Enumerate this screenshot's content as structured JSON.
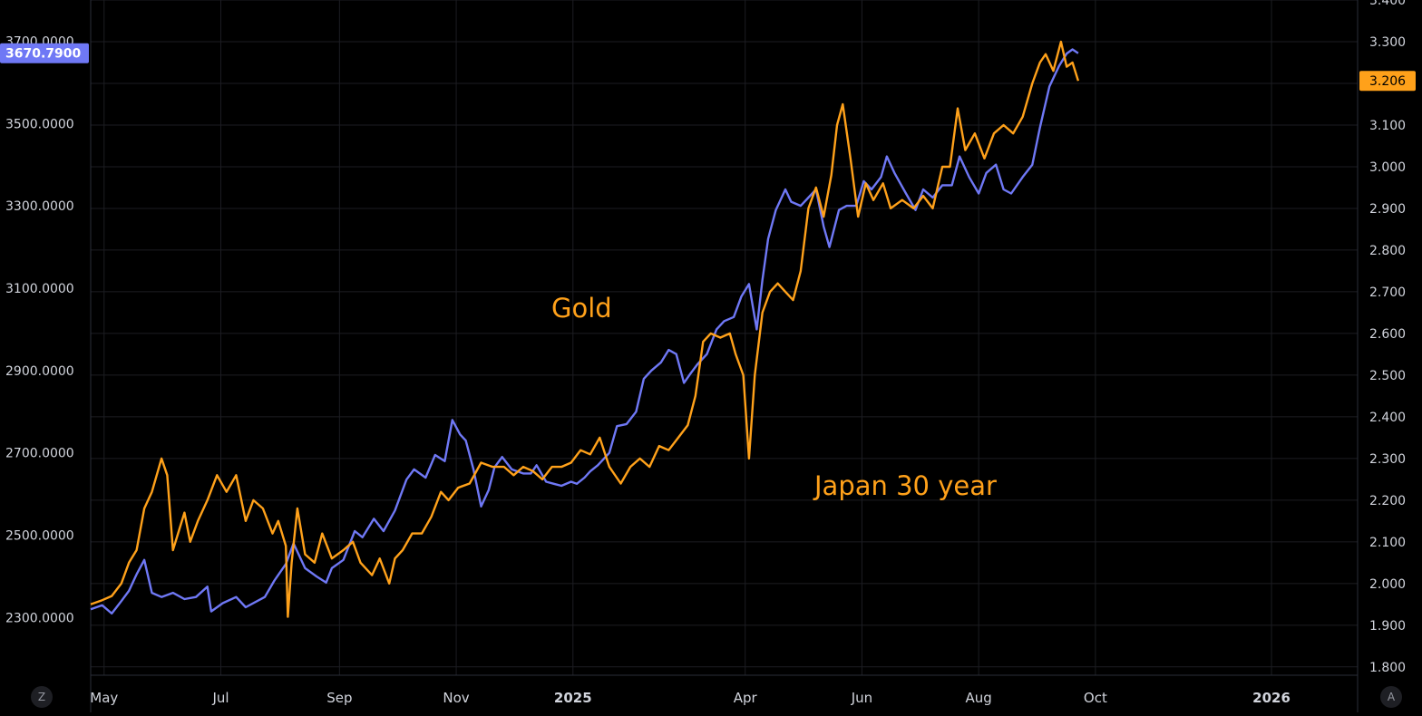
{
  "colors": {
    "background": "#000000",
    "gold": "#6f78f5",
    "japan": "#ffa11a",
    "grid": "#1c1d22",
    "axis_text": "#d1d4dc"
  },
  "controls": {
    "left_button": "Z",
    "right_button": "A"
  },
  "chart_data": {
    "type": "line",
    "x_axis": {
      "ticks": [
        "May",
        "Jul",
        "Sep",
        "Nov",
        "2025",
        "Apr",
        "Jun",
        "Aug",
        "Oct",
        "2026"
      ],
      "tick_dates": [
        "2024-05-01",
        "2024-07-01",
        "2024-09-01",
        "2024-11-01",
        "2025-01-01",
        "2025-04-01",
        "2025-06-01",
        "2025-08-01",
        "2025-10-01",
        "2026-01-01"
      ],
      "range": [
        "2024-04-24",
        "2026-02-15"
      ]
    },
    "y_left": {
      "ticks": [
        "2300.0000",
        "2500.0000",
        "2700.0000",
        "2900.0000",
        "3100.0000",
        "3300.0000",
        "3500.0000",
        "3700.0000"
      ],
      "range": [
        2160,
        3800
      ]
    },
    "y_right": {
      "ticks": [
        "1.800",
        "1.900",
        "2.000",
        "2.100",
        "2.200",
        "2.300",
        "2.400",
        "2.500",
        "2.600",
        "2.700",
        "2.800",
        "2.900",
        "3.000",
        "3.100",
        "3.200",
        "3.300",
        "3.400"
      ],
      "range": [
        1.78,
        3.4
      ]
    },
    "annotations": [
      "Gold",
      "Japan 30 year"
    ],
    "series": [
      {
        "name": "Gold",
        "axis": "left",
        "color": "#6f78f5",
        "last_value": "3670.7900",
        "points": [
          [
            "2024-04-24",
            2320
          ],
          [
            "2024-04-30",
            2330
          ],
          [
            "2024-05-05",
            2310
          ],
          [
            "2024-05-10",
            2340
          ],
          [
            "2024-05-14",
            2365
          ],
          [
            "2024-05-18",
            2405
          ],
          [
            "2024-05-22",
            2440
          ],
          [
            "2024-05-26",
            2360
          ],
          [
            "2024-05-31",
            2350
          ],
          [
            "2024-06-06",
            2360
          ],
          [
            "2024-06-12",
            2345
          ],
          [
            "2024-06-18",
            2350
          ],
          [
            "2024-06-24",
            2375
          ],
          [
            "2024-06-26",
            2315
          ],
          [
            "2024-07-02",
            2335
          ],
          [
            "2024-07-09",
            2350
          ],
          [
            "2024-07-14",
            2325
          ],
          [
            "2024-07-20",
            2340
          ],
          [
            "2024-07-24",
            2350
          ],
          [
            "2024-07-29",
            2390
          ],
          [
            "2024-08-04",
            2430
          ],
          [
            "2024-08-08",
            2480
          ],
          [
            "2024-08-14",
            2420
          ],
          [
            "2024-08-20",
            2400
          ],
          [
            "2024-08-25",
            2385
          ],
          [
            "2024-08-28",
            2420
          ],
          [
            "2024-09-03",
            2440
          ],
          [
            "2024-09-09",
            2510
          ],
          [
            "2024-09-13",
            2495
          ],
          [
            "2024-09-19",
            2540
          ],
          [
            "2024-09-24",
            2510
          ],
          [
            "2024-09-30",
            2560
          ],
          [
            "2024-10-06",
            2635
          ],
          [
            "2024-10-10",
            2660
          ],
          [
            "2024-10-16",
            2640
          ],
          [
            "2024-10-21",
            2695
          ],
          [
            "2024-10-26",
            2680
          ],
          [
            "2024-10-30",
            2780
          ],
          [
            "2024-11-03",
            2745
          ],
          [
            "2024-11-06",
            2730
          ],
          [
            "2024-11-10",
            2660
          ],
          [
            "2024-11-14",
            2570
          ],
          [
            "2024-11-18",
            2610
          ],
          [
            "2024-11-21",
            2665
          ],
          [
            "2024-11-25",
            2690
          ],
          [
            "2024-11-30",
            2660
          ],
          [
            "2024-12-06",
            2650
          ],
          [
            "2024-12-10",
            2650
          ],
          [
            "2024-12-13",
            2670
          ],
          [
            "2024-12-18",
            2630
          ],
          [
            "2024-12-22",
            2625
          ],
          [
            "2024-12-26",
            2620
          ],
          [
            "2024-12-31",
            2630
          ],
          [
            "2025-01-03",
            2625
          ],
          [
            "2025-01-07",
            2640
          ],
          [
            "2025-01-10",
            2655
          ],
          [
            "2025-01-14",
            2670
          ],
          [
            "2025-01-20",
            2700
          ],
          [
            "2025-01-24",
            2765
          ],
          [
            "2025-01-29",
            2770
          ],
          [
            "2025-02-03",
            2800
          ],
          [
            "2025-02-07",
            2880
          ],
          [
            "2025-02-11",
            2900
          ],
          [
            "2025-02-16",
            2920
          ],
          [
            "2025-02-20",
            2950
          ],
          [
            "2025-02-24",
            2940
          ],
          [
            "2025-02-28",
            2870
          ],
          [
            "2025-03-03",
            2890
          ],
          [
            "2025-03-07",
            2915
          ],
          [
            "2025-03-12",
            2940
          ],
          [
            "2025-03-17",
            3000
          ],
          [
            "2025-03-21",
            3020
          ],
          [
            "2025-03-26",
            3030
          ],
          [
            "2025-03-30",
            3080
          ],
          [
            "2025-04-03",
            3110
          ],
          [
            "2025-04-07",
            3000
          ],
          [
            "2025-04-10",
            3120
          ],
          [
            "2025-04-13",
            3220
          ],
          [
            "2025-04-17",
            3290
          ],
          [
            "2025-04-22",
            3340
          ],
          [
            "2025-04-25",
            3310
          ],
          [
            "2025-04-30",
            3300
          ],
          [
            "2025-05-04",
            3320
          ],
          [
            "2025-05-08",
            3340
          ],
          [
            "2025-05-12",
            3250
          ],
          [
            "2025-05-15",
            3200
          ],
          [
            "2025-05-20",
            3290
          ],
          [
            "2025-05-24",
            3300
          ],
          [
            "2025-05-29",
            3300
          ],
          [
            "2025-06-02",
            3360
          ],
          [
            "2025-06-06",
            3340
          ],
          [
            "2025-06-11",
            3370
          ],
          [
            "2025-06-14",
            3420
          ],
          [
            "2025-06-18",
            3380
          ],
          [
            "2025-06-24",
            3330
          ],
          [
            "2025-06-29",
            3290
          ],
          [
            "2025-07-03",
            3340
          ],
          [
            "2025-07-08",
            3320
          ],
          [
            "2025-07-13",
            3350
          ],
          [
            "2025-07-18",
            3350
          ],
          [
            "2025-07-22",
            3420
          ],
          [
            "2025-07-27",
            3370
          ],
          [
            "2025-08-01",
            3330
          ],
          [
            "2025-08-05",
            3380
          ],
          [
            "2025-08-10",
            3400
          ],
          [
            "2025-08-14",
            3340
          ],
          [
            "2025-08-18",
            3330
          ],
          [
            "2025-08-24",
            3370
          ],
          [
            "2025-08-29",
            3400
          ],
          [
            "2025-09-02",
            3490
          ],
          [
            "2025-09-07",
            3590
          ],
          [
            "2025-09-12",
            3640
          ],
          [
            "2025-09-16",
            3670
          ],
          [
            "2025-09-19",
            3680
          ],
          [
            "2025-09-22",
            3670.79
          ]
        ]
      },
      {
        "name": "Japan 30 year",
        "axis": "right",
        "color": "#ffa11a",
        "last_value": "3.206",
        "points": [
          [
            "2024-04-24",
            1.95
          ],
          [
            "2024-04-30",
            1.96
          ],
          [
            "2024-05-05",
            1.97
          ],
          [
            "2024-05-10",
            2.0
          ],
          [
            "2024-05-14",
            2.05
          ],
          [
            "2024-05-18",
            2.08
          ],
          [
            "2024-05-22",
            2.18
          ],
          [
            "2024-05-26",
            2.22
          ],
          [
            "2024-05-31",
            2.3
          ],
          [
            "2024-06-03",
            2.26
          ],
          [
            "2024-06-06",
            2.08
          ],
          [
            "2024-06-12",
            2.17
          ],
          [
            "2024-06-15",
            2.1
          ],
          [
            "2024-06-19",
            2.15
          ],
          [
            "2024-06-24",
            2.2
          ],
          [
            "2024-06-29",
            2.26
          ],
          [
            "2024-07-04",
            2.22
          ],
          [
            "2024-07-09",
            2.26
          ],
          [
            "2024-07-14",
            2.15
          ],
          [
            "2024-07-18",
            2.2
          ],
          [
            "2024-07-23",
            2.18
          ],
          [
            "2024-07-28",
            2.12
          ],
          [
            "2024-07-31",
            2.15
          ],
          [
            "2024-08-04",
            2.09
          ],
          [
            "2024-08-05",
            1.92
          ],
          [
            "2024-08-07",
            2.05
          ],
          [
            "2024-08-10",
            2.18
          ],
          [
            "2024-08-14",
            2.07
          ],
          [
            "2024-08-19",
            2.05
          ],
          [
            "2024-08-23",
            2.12
          ],
          [
            "2024-08-28",
            2.06
          ],
          [
            "2024-09-03",
            2.08
          ],
          [
            "2024-09-08",
            2.1
          ],
          [
            "2024-09-12",
            2.05
          ],
          [
            "2024-09-18",
            2.02
          ],
          [
            "2024-09-22",
            2.06
          ],
          [
            "2024-09-27",
            2.0
          ],
          [
            "2024-09-30",
            2.06
          ],
          [
            "2024-10-04",
            2.08
          ],
          [
            "2024-10-09",
            2.12
          ],
          [
            "2024-10-14",
            2.12
          ],
          [
            "2024-10-19",
            2.16
          ],
          [
            "2024-10-24",
            2.22
          ],
          [
            "2024-10-28",
            2.2
          ],
          [
            "2024-11-02",
            2.23
          ],
          [
            "2024-11-08",
            2.24
          ],
          [
            "2024-11-14",
            2.29
          ],
          [
            "2024-11-20",
            2.28
          ],
          [
            "2024-11-26",
            2.28
          ],
          [
            "2024-12-01",
            2.26
          ],
          [
            "2024-12-06",
            2.28
          ],
          [
            "2024-12-11",
            2.27
          ],
          [
            "2024-12-16",
            2.25
          ],
          [
            "2024-12-21",
            2.28
          ],
          [
            "2024-12-26",
            2.28
          ],
          [
            "2024-12-31",
            2.29
          ],
          [
            "2025-01-05",
            2.32
          ],
          [
            "2025-01-10",
            2.31
          ],
          [
            "2025-01-15",
            2.35
          ],
          [
            "2025-01-20",
            2.28
          ],
          [
            "2025-01-26",
            2.24
          ],
          [
            "2025-01-31",
            2.28
          ],
          [
            "2025-02-05",
            2.3
          ],
          [
            "2025-02-10",
            2.28
          ],
          [
            "2025-02-15",
            2.33
          ],
          [
            "2025-02-20",
            2.32
          ],
          [
            "2025-02-25",
            2.35
          ],
          [
            "2025-03-02",
            2.38
          ],
          [
            "2025-03-06",
            2.45
          ],
          [
            "2025-03-10",
            2.58
          ],
          [
            "2025-03-14",
            2.6
          ],
          [
            "2025-03-19",
            2.59
          ],
          [
            "2025-03-24",
            2.6
          ],
          [
            "2025-03-27",
            2.55
          ],
          [
            "2025-03-31",
            2.5
          ],
          [
            "2025-04-03",
            2.3
          ],
          [
            "2025-04-06",
            2.5
          ],
          [
            "2025-04-10",
            2.65
          ],
          [
            "2025-04-14",
            2.7
          ],
          [
            "2025-04-18",
            2.72
          ],
          [
            "2025-04-22",
            2.7
          ],
          [
            "2025-04-26",
            2.68
          ],
          [
            "2025-04-30",
            2.75
          ],
          [
            "2025-05-04",
            2.9
          ],
          [
            "2025-05-08",
            2.95
          ],
          [
            "2025-05-12",
            2.88
          ],
          [
            "2025-05-16",
            2.98
          ],
          [
            "2025-05-19",
            3.1
          ],
          [
            "2025-05-22",
            3.15
          ],
          [
            "2025-05-26",
            3.02
          ],
          [
            "2025-05-30",
            2.88
          ],
          [
            "2025-06-03",
            2.96
          ],
          [
            "2025-06-07",
            2.92
          ],
          [
            "2025-06-12",
            2.96
          ],
          [
            "2025-06-16",
            2.9
          ],
          [
            "2025-06-22",
            2.92
          ],
          [
            "2025-06-28",
            2.9
          ],
          [
            "2025-07-03",
            2.93
          ],
          [
            "2025-07-08",
            2.9
          ],
          [
            "2025-07-13",
            3.0
          ],
          [
            "2025-07-17",
            3.0
          ],
          [
            "2025-07-21",
            3.14
          ],
          [
            "2025-07-25",
            3.04
          ],
          [
            "2025-07-30",
            3.08
          ],
          [
            "2025-08-04",
            3.02
          ],
          [
            "2025-08-09",
            3.08
          ],
          [
            "2025-08-14",
            3.1
          ],
          [
            "2025-08-19",
            3.08
          ],
          [
            "2025-08-24",
            3.12
          ],
          [
            "2025-08-29",
            3.2
          ],
          [
            "2025-09-02",
            3.25
          ],
          [
            "2025-09-05",
            3.27
          ],
          [
            "2025-09-09",
            3.23
          ],
          [
            "2025-09-13",
            3.3
          ],
          [
            "2025-09-16",
            3.24
          ],
          [
            "2025-09-19",
            3.25
          ],
          [
            "2025-09-22",
            3.206
          ]
        ]
      }
    ]
  }
}
